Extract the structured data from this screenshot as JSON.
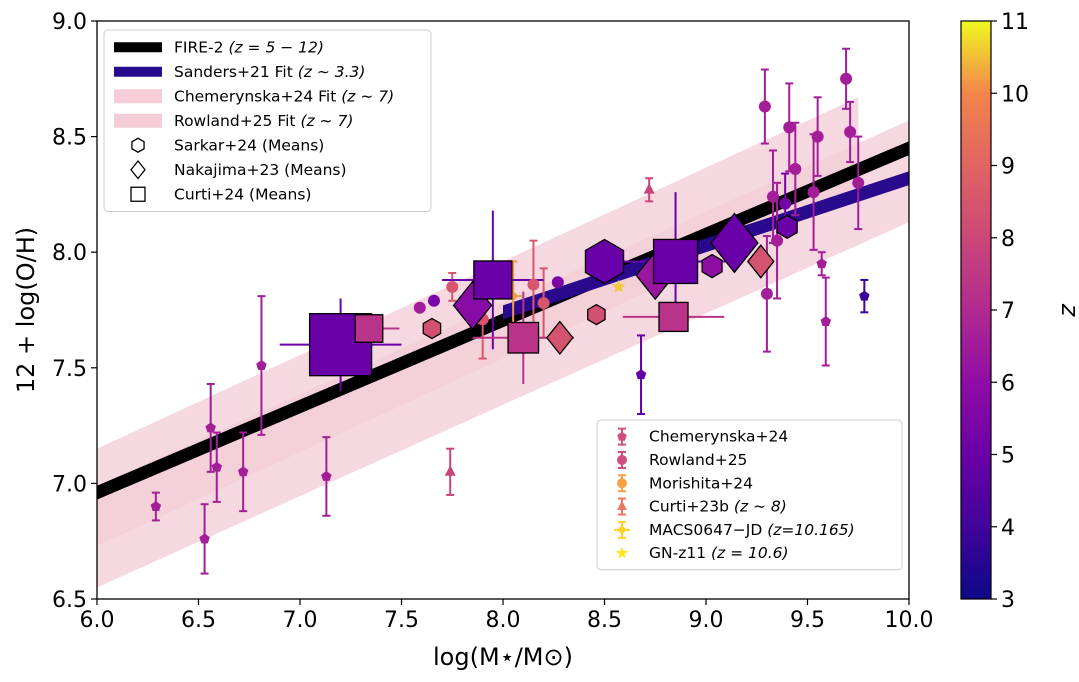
{
  "chart_data": {
    "type": "scatter",
    "xlabel": "log(M⋆/M⊙)",
    "ylabel": "12 + log(O/H)",
    "xlim": [
      6.0,
      10.0
    ],
    "ylim": [
      6.5,
      9.0
    ],
    "xticks": [
      "6.0",
      "6.5",
      "7.0",
      "7.5",
      "8.0",
      "8.5",
      "9.0",
      "9.5",
      "10.0"
    ],
    "yticks": [
      "6.5",
      "7.0",
      "7.5",
      "8.0",
      "8.5",
      "9.0"
    ],
    "colorbar": {
      "label": "z",
      "range": [
        3,
        11
      ],
      "ticks": [
        "3",
        "4",
        "5",
        "6",
        "7",
        "8",
        "9",
        "10",
        "11"
      ],
      "colormap": "plasma"
    },
    "fits": [
      {
        "name": "FIRE-2",
        "redshift": "(z = 5 − 12)",
        "x": [
          6.0,
          10.0
        ],
        "y": [
          6.96,
          8.45
        ],
        "color": "#000000",
        "band_halfwidth": 0.03
      },
      {
        "name": "Sanders+21 Fit",
        "redshift": "(z ∼ 3.3)",
        "x": [
          8.0,
          10.0
        ],
        "y": [
          7.74,
          8.32
        ],
        "color": "#2a0a8c",
        "band_halfwidth": 0.03
      },
      {
        "name": "Chemerynska+24 Fit",
        "redshift": "(z ∼ 7)",
        "x": [
          6.0,
          9.75
        ],
        "y": [
          6.94,
          8.46
        ],
        "band_halfwidth": 0.21,
        "color": "#f4cdd7"
      },
      {
        "name": "Rowland+25 Fit",
        "redshift": "(z ∼ 7)",
        "x": [
          6.0,
          10.0
        ],
        "y": [
          6.77,
          8.35
        ],
        "band_halfwidth": 0.22,
        "color": "#f4cdd7"
      }
    ],
    "series": [
      {
        "name": "Chemerynska+24",
        "marker": "pentagon",
        "points": [
          {
            "x": 6.29,
            "y": 6.9,
            "yerr": 0.06,
            "z": 6.6
          },
          {
            "x": 6.53,
            "y": 6.76,
            "yerr": 0.15,
            "z": 6.6
          },
          {
            "x": 6.56,
            "y": 7.24,
            "yerr": 0.19,
            "z": 6.6
          },
          {
            "x": 6.59,
            "y": 7.07,
            "yerr": 0.15,
            "z": 6.6
          },
          {
            "x": 6.72,
            "y": 7.05,
            "yerr": 0.17,
            "z": 6.6
          },
          {
            "x": 6.81,
            "y": 7.51,
            "yerr": 0.3,
            "z": 6.6
          },
          {
            "x": 7.13,
            "y": 7.03,
            "yerr": 0.17,
            "z": 6.6
          },
          {
            "x": 8.68,
            "y": 7.47,
            "yerr": 0.17,
            "z": 4.8
          },
          {
            "x": 9.59,
            "y": 7.7,
            "yerr": 0.19,
            "z": 6.6
          },
          {
            "x": 9.78,
            "y": 7.81,
            "yerr": 0.07,
            "z": 3.8
          },
          {
            "x": 9.57,
            "y": 7.95,
            "yerr": 0.05,
            "z": 6.6
          }
        ]
      },
      {
        "name": "Rowland+25",
        "marker": "circle",
        "points": [
          {
            "x": 7.59,
            "y": 7.76,
            "yerr": 0.0,
            "z": 6.5
          },
          {
            "x": 7.66,
            "y": 7.79,
            "yerr": 0.0,
            "z": 5.4
          },
          {
            "x": 8.27,
            "y": 7.87,
            "yerr": 0.0,
            "z": 5.4
          },
          {
            "x": 9.29,
            "y": 8.63,
            "yerr": 0.16,
            "z": 6.6
          },
          {
            "x": 9.3,
            "y": 7.82,
            "yerr": 0.25,
            "z": 6.6
          },
          {
            "x": 9.33,
            "y": 8.24,
            "yerr": 0.2,
            "z": 6.6
          },
          {
            "x": 9.35,
            "y": 8.05,
            "yerr": 0.25,
            "z": 6.6
          },
          {
            "x": 9.41,
            "y": 8.54,
            "yerr": 0.19,
            "z": 6.6
          },
          {
            "x": 9.44,
            "y": 8.36,
            "yerr": 0.2,
            "z": 6.6
          },
          {
            "x": 9.53,
            "y": 8.26,
            "yerr": 0.25,
            "z": 6.6
          },
          {
            "x": 9.55,
            "y": 8.5,
            "yerr": 0.17,
            "z": 6.6
          },
          {
            "x": 9.69,
            "y": 8.75,
            "yerr": 0.13,
            "z": 6.6
          },
          {
            "x": 9.71,
            "y": 8.52,
            "yerr": 0.13,
            "z": 6.6
          },
          {
            "x": 9.75,
            "y": 8.3,
            "yerr": 0.2,
            "z": 6.6
          },
          {
            "x": 9.39,
            "y": 8.21,
            "yerr": 0.13,
            "z": 5.2
          }
        ]
      },
      {
        "name": "Morishita+24",
        "marker": "circle",
        "points": [
          {
            "x": 7.75,
            "y": 7.85,
            "yerr": 0.06,
            "z": 8.5
          },
          {
            "x": 7.9,
            "y": 7.71,
            "yerr": 0.17,
            "z": 8.5
          },
          {
            "x": 8.15,
            "y": 7.86,
            "yerr": 0.19,
            "z": 8.5
          },
          {
            "x": 8.2,
            "y": 7.78,
            "yerr": 0.15,
            "z": 8.5
          },
          {
            "x": 8.85,
            "y": 8.02,
            "yerr": 0.0,
            "z": 8.5
          }
        ]
      },
      {
        "name": "Curti+23b",
        "redshift": "(z ∼ 8)",
        "marker": "triangle",
        "points": [
          {
            "x": 7.74,
            "y": 7.05,
            "yerr": 0.1,
            "z": 7.9
          },
          {
            "x": 8.72,
            "y": 8.27,
            "yerr": 0.05,
            "z": 7.9
          }
        ]
      },
      {
        "name": "MACS0647−JD",
        "redshift": "(z=10.165)",
        "marker": "plus",
        "points": [
          {
            "x": 8.05,
            "y": 7.81,
            "yerr": 0.15,
            "z": 10.165
          }
        ]
      },
      {
        "name": "GN-z11",
        "redshift": "(z = 10.6)",
        "marker": "star",
        "points": [
          {
            "x": 8.57,
            "y": 7.85,
            "yerr": 0.0,
            "z": 10.6
          }
        ]
      }
    ],
    "means": [
      {
        "name": "Sarkar+24 (Means)",
        "marker": "hexagon",
        "points": [
          {
            "x": 7.65,
            "y": 7.67,
            "z": 8.3,
            "size": 0.2
          },
          {
            "x": 8.46,
            "y": 7.73,
            "z": 8.3,
            "size": 0.2
          },
          {
            "x": 8.5,
            "y": 7.96,
            "z": 5.0,
            "size": 1.0
          },
          {
            "x": 9.4,
            "y": 8.11,
            "z": 5.0,
            "size": 0.3
          },
          {
            "x": 9.03,
            "y": 7.94,
            "z": 6.0,
            "size": 0.3
          }
        ]
      },
      {
        "name": "Nakajima+23 (Means)",
        "marker": "diamond",
        "points": [
          {
            "x": 7.85,
            "y": 7.77,
            "z": 5.8,
            "size": 0.8
          },
          {
            "x": 8.28,
            "y": 7.63,
            "z": 8.4,
            "size": 0.4
          },
          {
            "x": 8.75,
            "y": 7.9,
            "z": 6.3,
            "size": 0.8
          },
          {
            "x": 9.14,
            "y": 8.04,
            "z": 5.0,
            "size": 1.1
          },
          {
            "x": 9.27,
            "y": 7.96,
            "z": 8.4,
            "size": 0.4
          }
        ]
      },
      {
        "name": "Curti+24 (Means)",
        "marker": "square",
        "points": [
          {
            "x": 7.2,
            "y": 7.6,
            "z": 5.0,
            "size": 1.6,
            "xerr": 0.3,
            "yerr": 0.2
          },
          {
            "x": 7.34,
            "y": 7.67,
            "z": 7.3,
            "size": 0.45,
            "xerr": 0.15,
            "yerr": 0.0
          },
          {
            "x": 7.95,
            "y": 7.88,
            "z": 5.0,
            "size": 0.8,
            "xerr": 0.25,
            "yerr": 0.3
          },
          {
            "x": 8.1,
            "y": 7.63,
            "z": 7.3,
            "size": 0.55,
            "xerr": 0.25,
            "yerr": 0.2
          },
          {
            "x": 8.84,
            "y": 7.72,
            "z": 7.3,
            "size": 0.5,
            "xerr": 0.25,
            "yerr": 0.0
          },
          {
            "x": 8.85,
            "y": 7.96,
            "z": 5.0,
            "size": 1.0,
            "xerr": 0.3,
            "yerr": 0.3
          }
        ]
      }
    ],
    "legend_upper": [
      {
        "label": "FIRE-2 ",
        "suffix": "(z = 5 − 12)",
        "kind": "thick-line",
        "color": "#000000"
      },
      {
        "label": "Sanders+21 Fit ",
        "suffix": "(z ∼ 3.3)",
        "kind": "thick-line",
        "color": "#2a0a8c"
      },
      {
        "label": "Chemerynska+24 Fit ",
        "suffix": "(z ∼ 7)",
        "kind": "band",
        "color": "#f4cdd7"
      },
      {
        "label": "Rowland+25 Fit ",
        "suffix": "(z ∼ 7)",
        "kind": "band",
        "color": "#f4cdd7"
      },
      {
        "label": "Sarkar+24 (Means)",
        "suffix": "",
        "kind": "hexagon",
        "color": "#000000"
      },
      {
        "label": "Nakajima+23 (Means)",
        "suffix": "",
        "kind": "diamond",
        "color": "#000000"
      },
      {
        "label": "Curti+24 (Means)",
        "suffix": "",
        "kind": "square",
        "color": "#000000"
      }
    ],
    "legend_lower": [
      {
        "label": "Chemerynska+24",
        "suffix": "",
        "kind": "pentagon",
        "color": "#d04f7e"
      },
      {
        "label": "Rowland+25",
        "suffix": "",
        "kind": "circle",
        "color": "#d04f7e"
      },
      {
        "label": "Morishita+24",
        "suffix": "",
        "kind": "circle",
        "color": "#f5a044"
      },
      {
        "label": "Curti+23b ",
        "suffix": "(z ∼ 8)",
        "kind": "triangle",
        "color": "#ec7765"
      },
      {
        "label": "MACS0647−JD ",
        "suffix": "(z=10.165)",
        "kind": "plus",
        "color": "#fcd225"
      },
      {
        "label": "GN-z11 ",
        "suffix": "(z = 10.6)",
        "kind": "star",
        "color": "#fce722"
      }
    ]
  }
}
